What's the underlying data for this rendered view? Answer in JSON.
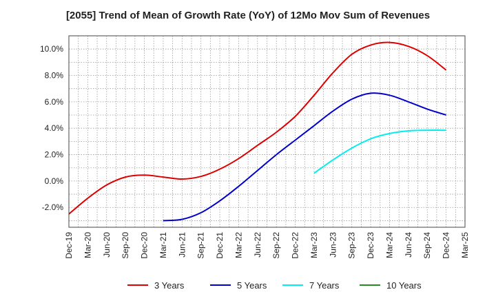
{
  "chart_data": {
    "type": "line",
    "title": "[2055]  Trend of Mean of Growth Rate (YoY) of 12Mo Mov Sum of Revenues",
    "xlabel": "",
    "ylabel": "",
    "ylim": [
      -3.5,
      11.0
    ],
    "y_ticks": [
      -2.0,
      0.0,
      2.0,
      4.0,
      6.0,
      8.0,
      10.0
    ],
    "y_tick_labels": [
      "-2.0%",
      "0.0%",
      "2.0%",
      "4.0%",
      "6.0%",
      "8.0%",
      "10.0%"
    ],
    "x_tick_labels": [
      "Dec-19",
      "Mar-20",
      "Jun-20",
      "Sep-20",
      "Dec-20",
      "Mar-21",
      "Jun-21",
      "Sep-21",
      "Dec-21",
      "Mar-22",
      "Jun-22",
      "Sep-22",
      "Dec-22",
      "Mar-23",
      "Jun-23",
      "Sep-23",
      "Dec-23",
      "Mar-24",
      "Jun-24",
      "Sep-24",
      "Dec-24",
      "Mar-25"
    ],
    "grid": true,
    "legend_position": "bottom",
    "series": [
      {
        "name": "3 Years",
        "color": "#dd0000",
        "points": [
          [
            0,
            -2.5
          ],
          [
            1,
            -1.3
          ],
          [
            2,
            -0.3
          ],
          [
            3,
            0.3
          ],
          [
            4,
            0.45
          ],
          [
            5,
            0.3
          ],
          [
            6,
            0.15
          ],
          [
            7,
            0.35
          ],
          [
            8,
            0.9
          ],
          [
            9,
            1.7
          ],
          [
            10,
            2.7
          ],
          [
            11,
            3.7
          ],
          [
            12,
            4.9
          ],
          [
            13,
            6.5
          ],
          [
            14,
            8.2
          ],
          [
            15,
            9.6
          ],
          [
            16,
            10.3
          ],
          [
            17,
            10.5
          ],
          [
            18,
            10.2
          ],
          [
            19,
            9.5
          ],
          [
            20,
            8.4
          ]
        ]
      },
      {
        "name": "5 Years",
        "color": "#0000cc",
        "points": [
          [
            5,
            -3.0
          ],
          [
            6,
            -2.9
          ],
          [
            7,
            -2.4
          ],
          [
            8,
            -1.5
          ],
          [
            9,
            -0.4
          ],
          [
            10,
            0.8
          ],
          [
            11,
            2.0
          ],
          [
            12,
            3.1
          ],
          [
            13,
            4.2
          ],
          [
            14,
            5.3
          ],
          [
            15,
            6.2
          ],
          [
            16,
            6.65
          ],
          [
            17,
            6.5
          ],
          [
            18,
            6.0
          ],
          [
            19,
            5.45
          ],
          [
            20,
            5.0
          ]
        ]
      },
      {
        "name": "7 Years",
        "color": "#00eeee",
        "points": [
          [
            13,
            0.6
          ],
          [
            14,
            1.6
          ],
          [
            15,
            2.5
          ],
          [
            16,
            3.2
          ],
          [
            17,
            3.6
          ],
          [
            18,
            3.8
          ],
          [
            19,
            3.85
          ],
          [
            20,
            3.85
          ]
        ]
      },
      {
        "name": "10 Years",
        "color": "#228b22",
        "points": []
      }
    ]
  }
}
